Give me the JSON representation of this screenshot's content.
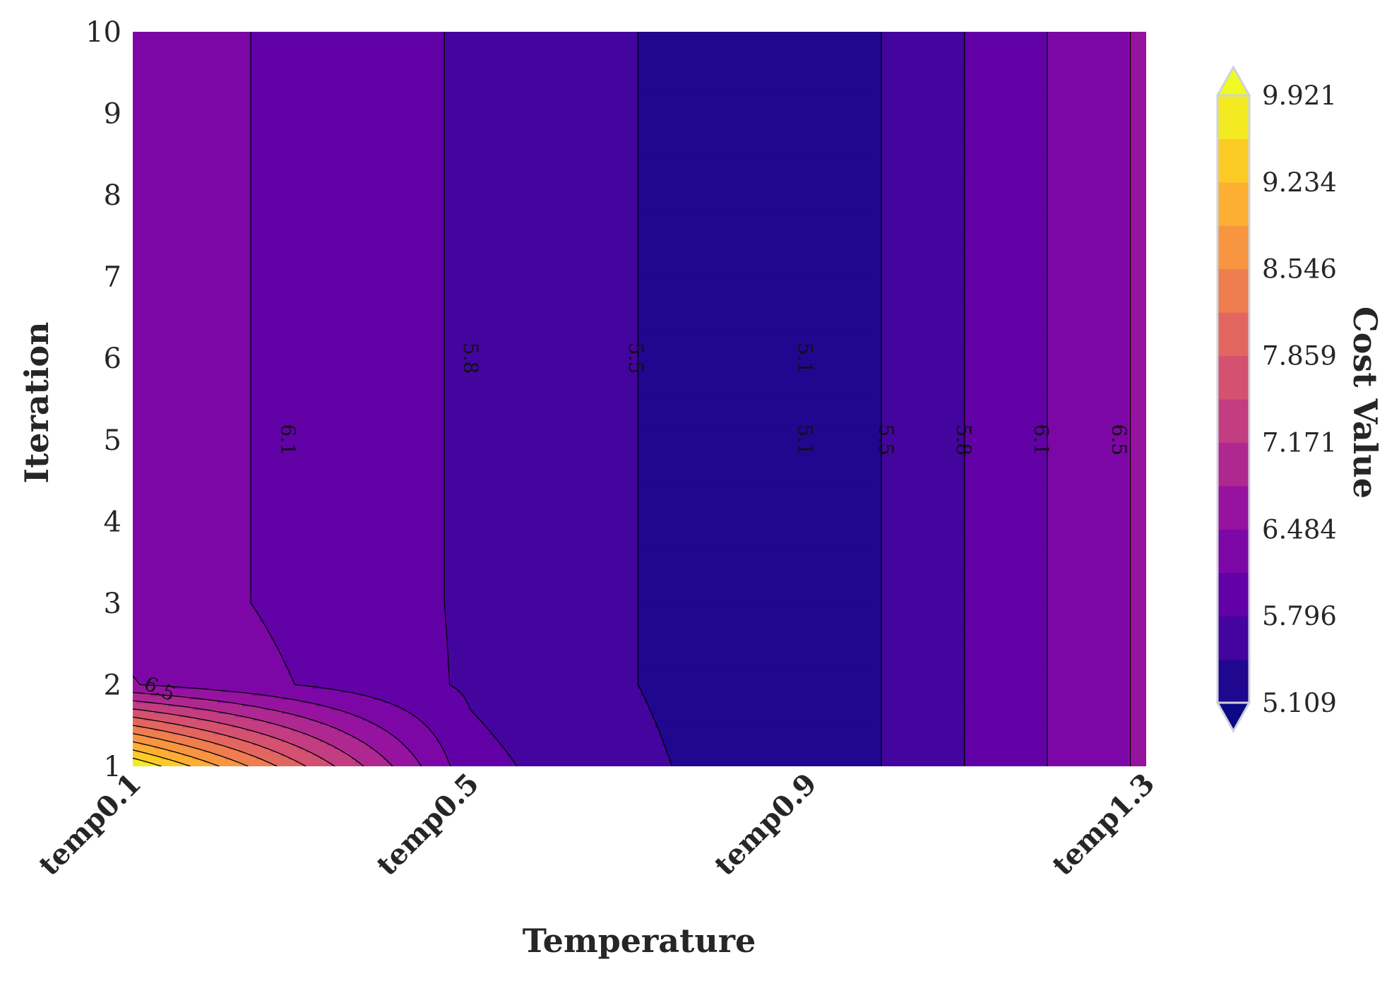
{
  "chart_data": {
    "type": "contour",
    "xlabel": "Temperature",
    "ylabel": "Iteration",
    "x": [
      "temp0.1",
      "temp0.5",
      "temp0.9",
      "temp1.3"
    ],
    "y": [
      1,
      2,
      3,
      4,
      5,
      6,
      7,
      8,
      9,
      10
    ],
    "ylim": [
      1,
      10
    ],
    "colormap": "plasma",
    "colorbar": {
      "label": "Cost Value",
      "ticks": [
        "5.109",
        "9.921",
        "9.234",
        "8.546",
        "7.859",
        "7.171",
        "6.484",
        "5.796"
      ],
      "min": 5.109,
      "max": 9.921,
      "extend": "both"
    },
    "z_columns": [
      {
        "x": "temp0.1",
        "values": [
          9.92,
          6.5,
          6.35,
          6.35,
          6.35,
          6.35,
          6.35,
          6.35,
          6.35,
          6.35
        ]
      },
      {
        "x": "temp0.5",
        "values": [
          5.9,
          5.75,
          5.75,
          5.75,
          5.75,
          5.75,
          5.75,
          5.75,
          5.75,
          5.75
        ]
      },
      {
        "x": "temp0.9",
        "values": [
          5.15,
          5.15,
          5.15,
          5.15,
          5.15,
          5.15,
          5.15,
          5.15,
          5.15,
          5.15
        ]
      },
      {
        "x": "temp1.3",
        "values": [
          6.55,
          6.55,
          6.55,
          6.55,
          6.55,
          6.55,
          6.55,
          6.55,
          6.55,
          6.55
        ]
      }
    ],
    "contour_labels": [
      {
        "text": "6.1",
        "x_pos": 0.46,
        "y": 5
      },
      {
        "text": "5.8",
        "x_pos": 1.0,
        "y": 6
      },
      {
        "text": "5.5",
        "x_pos": 1.49,
        "y": 6
      },
      {
        "text": "5.1",
        "x_pos": 1.99,
        "y": 6
      },
      {
        "text": "5.1",
        "x_pos": 1.99,
        "y": 5
      },
      {
        "text": "5.5",
        "x_pos": 2.23,
        "y": 5
      },
      {
        "text": "5.8",
        "x_pos": 2.46,
        "y": 5
      },
      {
        "text": "6.1",
        "x_pos": 2.69,
        "y": 5
      },
      {
        "text": "6.5",
        "x_pos": 2.92,
        "y": 5
      },
      {
        "text": "6.5",
        "x_pos": 0.08,
        "y": 1.95
      }
    ]
  }
}
